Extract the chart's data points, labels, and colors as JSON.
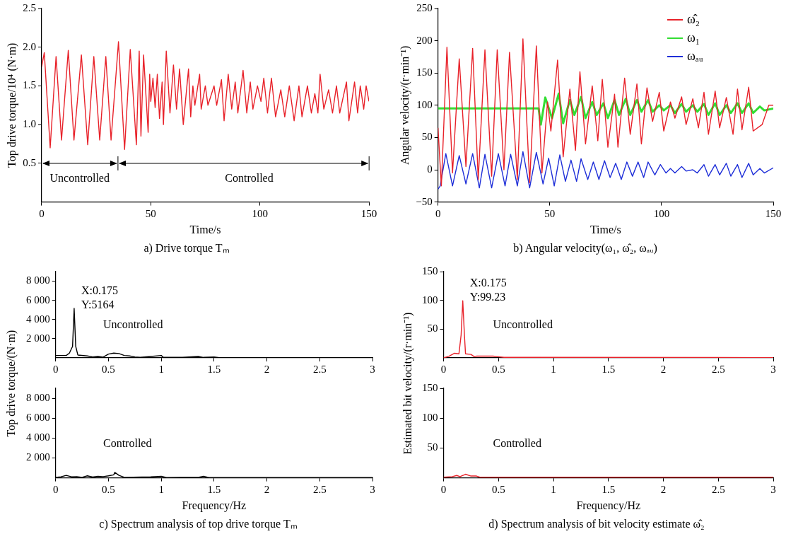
{
  "chart_data": [
    {
      "type": "line",
      "title": "a) Drive torque Tₘ",
      "xlabel": "Time/s",
      "ylabel": "Top drive torque/10⁴ (N·m)",
      "xlim": [
        0,
        150
      ],
      "xticks": [
        0,
        50,
        100,
        150
      ],
      "ylim": [
        0,
        2.5
      ],
      "yticks": [
        0.5,
        {
          "value": 1,
          "label": "1.0"
        },
        1.5,
        {
          "value": 2,
          "label": "2.0"
        },
        2.5
      ],
      "series": [
        {
          "color": "#e8222a",
          "x": [
            0,
            1.2,
            3.9,
            6.6,
            9.1,
            12.2,
            14.8,
            18.2,
            21.1,
            23.9,
            26.6,
            29.4,
            31.8,
            35.2,
            38,
            40.6,
            43.4,
            44.7,
            45.5,
            46.7,
            48.8,
            49.5,
            50,
            51,
            52,
            53,
            54,
            55.2,
            55.8,
            57.1,
            58.8,
            60.4,
            61.8,
            63.2,
            64.9,
            67.3,
            68.3,
            69.3,
            70.2,
            72.4,
            73.1,
            75,
            76.2,
            79,
            80.2,
            82.4,
            83.6,
            85.5,
            87.1,
            88.7,
            89.9,
            92.3,
            94,
            95.6,
            96.8,
            98.9,
            100.5,
            101.8,
            103.5,
            105.3,
            107.2,
            109.6,
            111.4,
            113.5,
            115.7,
            117.9,
            119.3,
            121.8,
            123.6,
            125.2,
            126.6,
            127.6,
            129.3,
            131.5,
            133.3,
            135.1,
            136.6,
            139.7,
            140.8,
            143.4,
            144.8,
            146,
            147.6,
            148.7,
            150
          ],
          "values": [
            1.75,
            1.93,
            0.7,
            1.88,
            0.8,
            1.96,
            0.8,
            1.9,
            0.74,
            1.88,
            0.8,
            1.88,
            0.8,
            2.07,
            0.68,
            1.97,
            0.74,
            1.95,
            0.85,
            1.9,
            0.9,
            1.65,
            1.3,
            1.6,
            1.22,
            1.65,
            1.08,
            1.55,
            1.0,
            1.95,
            1.15,
            1.77,
            1.2,
            1.72,
            1.0,
            1.72,
            1.1,
            1.5,
            1.25,
            1.65,
            1.2,
            1.5,
            1.25,
            1.5,
            1.25,
            1.58,
            1.05,
            1.65,
            1.2,
            1.55,
            1.15,
            1.7,
            1.15,
            1.55,
            1.2,
            1.5,
            1.3,
            1.6,
            1.15,
            1.6,
            1.1,
            1.45,
            1.1,
            1.5,
            1.05,
            1.5,
            1.1,
            1.5,
            1.15,
            1.4,
            1.15,
            1.65,
            1.2,
            1.45,
            1.15,
            1.5,
            1.15,
            1.55,
            1.05,
            1.55,
            1.15,
            1.5,
            1.2,
            1.5,
            1.3
          ]
        }
      ],
      "annotations": [
        "Uncontrolled",
        "Controlled"
      ]
    },
    {
      "type": "line",
      "title": "b) Angular velocity(ω₁, ω̂₂, ωₐᵤ)",
      "xlabel": "Time/s",
      "ylabel": "Angular velocity/(r·min⁻¹)",
      "xlim": [
        0,
        150
      ],
      "xticks": [
        0,
        50,
        100,
        150
      ],
      "ylim": [
        -50,
        250
      ],
      "yticks": [
        {
          "value": -50,
          "label": "−50"
        },
        0,
        50,
        100,
        150,
        200,
        250
      ],
      "legend": "top right",
      "series": [
        {
          "name": "ω̂₂",
          "color": "#e8222a",
          "x": [
            0,
            1.5,
            4,
            6.5,
            9.5,
            12.5,
            15.5,
            18,
            21,
            24,
            26.5,
            29.5,
            32,
            35.5,
            38,
            41,
            44,
            46.5,
            49,
            50.5,
            53.5,
            56,
            59,
            61.5,
            63.5,
            66,
            69,
            71.5,
            73.5,
            76,
            79,
            80.5,
            83.5,
            86,
            89,
            91,
            93.5,
            96,
            99,
            101,
            104,
            106,
            109,
            111,
            114,
            116.5,
            119,
            121,
            124,
            126,
            129,
            132,
            134,
            136,
            139,
            141,
            145,
            148,
            150
          ],
          "values": [
            65,
            -25,
            190,
            -5,
            172,
            5,
            188,
            -15,
            186,
            -10,
            186,
            0,
            182,
            -15,
            203,
            -20,
            192,
            -5,
            105,
            60,
            170,
            20,
            125,
            30,
            152,
            40,
            130,
            45,
            140,
            35,
            117,
            35,
            142,
            55,
            133,
            40,
            127,
            75,
            120,
            60,
            105,
            80,
            113,
            70,
            110,
            65,
            120,
            55,
            122,
            65,
            112,
            55,
            125,
            62,
            128,
            60,
            70,
            100,
            100
          ]
        },
        {
          "name": "ω₁",
          "color": "#33dd33",
          "x": [
            0,
            45,
            46,
            48,
            51,
            54,
            56,
            59,
            61,
            64,
            66,
            69,
            71,
            74,
            76,
            79,
            81,
            84,
            86,
            89,
            91,
            94,
            96,
            99,
            101,
            104,
            106,
            109,
            111,
            114,
            116,
            119,
            121,
            124,
            126,
            129,
            131,
            134,
            136,
            139,
            141,
            144,
            146,
            150
          ],
          "values": [
            95,
            95,
            70,
            112,
            80,
            118,
            72,
            108,
            85,
            113,
            80,
            105,
            85,
            103,
            80,
            108,
            85,
            110,
            85,
            108,
            90,
            108,
            90,
            100,
            92,
            100,
            88,
            102,
            90,
            100,
            90,
            102,
            85,
            103,
            85,
            100,
            88,
            103,
            88,
            103,
            88,
            98,
            92,
            95
          ]
        },
        {
          "name": "ωₐᵤ",
          "color": "#1f2fd8",
          "x": [
            0,
            1,
            3.5,
            6.5,
            9.5,
            12.5,
            15.5,
            18.5,
            21,
            24,
            27,
            30,
            32.5,
            35.5,
            38,
            41,
            44,
            47,
            49.5,
            52,
            54.5,
            57,
            59.5,
            62,
            64,
            67,
            69.5,
            72,
            74.5,
            77,
            79.5,
            82,
            84.5,
            87,
            89.5,
            92,
            94,
            97,
            99.5,
            102,
            104,
            106,
            109,
            111,
            114,
            116,
            119,
            121,
            124,
            126,
            129,
            131,
            134,
            136,
            139,
            141,
            144,
            146,
            150
          ],
          "values": [
            -30,
            -25,
            25,
            -25,
            22,
            -22,
            25,
            -28,
            24,
            -28,
            25,
            -25,
            24,
            -25,
            28,
            -28,
            27,
            -22,
            18,
            -25,
            23,
            -18,
            15,
            -18,
            17,
            -15,
            12,
            -15,
            14,
            -12,
            10,
            -15,
            12,
            -10,
            12,
            -12,
            12,
            -8,
            8,
            -5,
            2,
            -5,
            5,
            -2,
            0,
            -5,
            8,
            -10,
            8,
            -8,
            10,
            -10,
            8,
            -12,
            10,
            -8,
            2,
            -5,
            3
          ]
        }
      ]
    },
    {
      "type": "line",
      "ylabel": "Top drive torque/(N·m)",
      "xlim": [
        0,
        3
      ],
      "xticks": [
        0,
        0.5,
        1,
        1.5,
        2,
        2.5,
        3
      ],
      "ylim": [
        0,
        9000
      ],
      "yticks": [
        {
          "value": 2000,
          "label": "2 000"
        },
        {
          "value": 4000,
          "label": "4 000"
        },
        {
          "value": 6000,
          "label": "6 000"
        },
        {
          "value": 8000,
          "label": "8 000"
        }
      ],
      "series": [
        {
          "color": "#000000",
          "x": [
            0,
            0.1,
            0.13,
            0.16,
            0.175,
            0.19,
            0.21,
            0.3,
            0.35,
            0.4,
            0.45,
            0.5,
            0.55,
            0.6,
            0.65,
            0.7,
            0.75,
            0.8,
            0.9,
            1,
            1.02,
            1.2,
            1.35,
            1.4,
            1.5,
            1.55,
            3
          ],
          "values": [
            250,
            250,
            500,
            1200,
            5164,
            1200,
            300,
            200,
            100,
            150,
            80,
            400,
            500,
            450,
            250,
            200,
            100,
            50,
            150,
            250,
            50,
            50,
            150,
            50,
            100,
            20,
            20
          ]
        }
      ],
      "annotations": [
        {
          "text": "X:0.175\nY:5164",
          "x": 0.175,
          "y": 5164
        },
        "Uncontrolled"
      ]
    },
    {
      "type": "line",
      "title": "c) Spectrum analysis of top drive torque Tₘ",
      "xlabel": "Frequency/Hz",
      "xlim": [
        0,
        3
      ],
      "xticks": [
        0,
        0.5,
        1,
        1.5,
        2,
        2.5,
        3
      ],
      "ylim": [
        0,
        9000
      ],
      "yticks": [
        {
          "value": 2000,
          "label": "2 000"
        },
        {
          "value": 4000,
          "label": "4 000"
        },
        {
          "value": 6000,
          "label": "6 000"
        },
        {
          "value": 8000,
          "label": "8 000"
        }
      ],
      "series": [
        {
          "color": "#000000",
          "x": [
            0,
            0.05,
            0.1,
            0.15,
            0.2,
            0.25,
            0.3,
            0.35,
            0.4,
            0.45,
            0.5,
            0.55,
            0.56,
            0.6,
            0.65,
            0.9,
            1,
            1.05,
            1.35,
            1.4,
            1.45,
            3
          ],
          "values": [
            50,
            100,
            250,
            100,
            120,
            50,
            200,
            80,
            150,
            120,
            200,
            300,
            550,
            250,
            50,
            100,
            150,
            30,
            50,
            150,
            30,
            20
          ]
        }
      ],
      "annotations": [
        "Controlled"
      ]
    },
    {
      "type": "line",
      "ylabel": "Estimated bit velocity/(r·min⁻¹)",
      "xlim": [
        0,
        3
      ],
      "xticks": [
        0,
        0.5,
        1,
        1.5,
        2,
        2.5,
        3
      ],
      "ylim": [
        0,
        150
      ],
      "yticks": [
        50,
        100,
        150
      ],
      "series": [
        {
          "color": "#e8222a",
          "x": [
            0,
            0.05,
            0.1,
            0.14,
            0.16,
            0.175,
            0.19,
            0.2,
            0.25,
            0.28,
            0.3,
            0.45,
            0.5,
            0.55,
            3
          ],
          "values": [
            0,
            3,
            8,
            7,
            40,
            99.23,
            40,
            7,
            6,
            2,
            3,
            3,
            2,
            1,
            0.5
          ]
        }
      ],
      "annotations": [
        {
          "text": "X:0.175\nY:99.23",
          "x": 0.175,
          "y": 99.23
        },
        "Uncontrolled"
      ]
    },
    {
      "type": "line",
      "title": "d) Spectrum analysis of bit velocity estimate ω̂₂",
      "xlabel": "Frequency/Hz",
      "xlim": [
        0,
        3
      ],
      "xticks": [
        0,
        0.5,
        1,
        1.5,
        2,
        2.5,
        3
      ],
      "ylim": [
        0,
        150
      ],
      "yticks": [
        50,
        100,
        150
      ],
      "series": [
        {
          "color": "#e8222a",
          "x": [
            0,
            0.08,
            0.12,
            0.15,
            0.2,
            0.25,
            0.3,
            0.33,
            0.5,
            3
          ],
          "values": [
            1,
            2,
            4,
            2,
            6,
            3,
            3,
            1,
            1,
            1
          ]
        }
      ],
      "annotations": [
        "Controlled"
      ]
    }
  ]
}
